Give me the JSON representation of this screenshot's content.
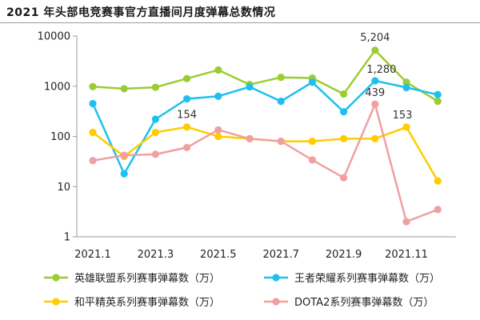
{
  "chart_data": {
    "type": "line",
    "title": "2021 年头部电竞赛事官方直播间月度弹幕总数情况",
    "xlabel": "",
    "ylabel": "",
    "yscale": "log",
    "ylim": [
      1,
      10000
    ],
    "y_ticks": [
      "1",
      "10",
      "100",
      "1000",
      "10000"
    ],
    "categories": [
      "2021.1",
      "2021.2",
      "2021.3",
      "2021.4",
      "2021.5",
      "2021.6",
      "2021.7",
      "2021.8",
      "2021.9",
      "2021.10",
      "2021.11",
      "2021.12"
    ],
    "x_tick_labels": [
      "2021.1",
      "",
      "2021.3",
      "",
      "2021.5",
      "",
      "2021.7",
      "",
      "2021.9",
      "",
      "2021.11",
      ""
    ],
    "grid": false,
    "legend_position": "bottom",
    "series": [
      {
        "name": "英雄联盟系列赛事弹幕数（万）",
        "color": "#9acd32",
        "values": [
          980,
          890,
          950,
          1420,
          2100,
          1080,
          1500,
          1450,
          700,
          5204,
          1200,
          500
        ]
      },
      {
        "name": "王者荣耀系列赛事弹幕数（万）",
        "color": "#1ec0f0",
        "values": [
          450,
          18,
          220,
          560,
          630,
          970,
          500,
          1200,
          310,
          1280,
          940,
          680
        ]
      },
      {
        "name": "和平精英系列赛事弹幕数（万）",
        "color": "#ffcc00",
        "values": [
          120,
          40,
          120,
          154,
          100,
          90,
          80,
          80,
          90,
          90,
          153,
          13
        ]
      },
      {
        "name": "DOTA2系列赛事弹幕数（万）",
        "color": "#f0a0a0",
        "values": [
          33,
          42,
          44,
          60,
          135,
          90,
          80,
          34,
          15,
          439,
          2,
          3.5
        ]
      }
    ],
    "annotations": [
      {
        "text": "5,204",
        "series": 0,
        "index": 9
      },
      {
        "text": "1,280",
        "series": 1,
        "index": 9
      },
      {
        "text": "154",
        "series": 2,
        "index": 3
      },
      {
        "text": "153",
        "series": 2,
        "index": 10
      },
      {
        "text": "439",
        "series": 3,
        "index": 9
      }
    ]
  }
}
